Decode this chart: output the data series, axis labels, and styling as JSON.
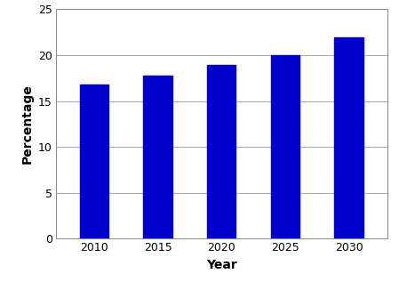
{
  "categories": [
    "2010",
    "2015",
    "2020",
    "2025",
    "2030"
  ],
  "values": [
    16.8,
    17.8,
    18.9,
    20.0,
    21.9
  ],
  "bar_color": "#0000CC",
  "bar_width": 0.45,
  "xlabel": "Year",
  "ylabel": "Percentage",
  "ylim": [
    0,
    25
  ],
  "yticks": [
    0,
    5,
    10,
    15,
    20,
    25
  ],
  "background_color": "#ffffff",
  "grid_color": "#999999",
  "xlabel_fontsize": 10,
  "ylabel_fontsize": 10,
  "tick_fontsize": 9,
  "legend_fontsize": 9,
  "border_color": "#888888"
}
